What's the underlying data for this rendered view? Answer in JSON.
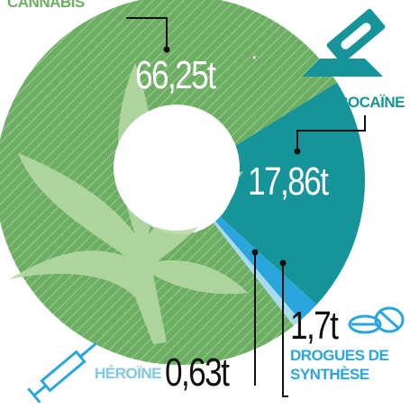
{
  "chart_data": {
    "type": "pie",
    "categories": [
      "COCAÏNE",
      "DROGUES DE SYNTHÈSE",
      "HÉROÏNE",
      "CANNABIS"
    ],
    "values": [
      17.86,
      1.7,
      0.63,
      66.25
    ],
    "value_labels": [
      "17,86t",
      "1,7t",
      "0,63t",
      "66,25t"
    ],
    "colors": [
      "#17949a",
      "#2ba6dd",
      "#a9dbee",
      "#6cae62"
    ],
    "footnote_marker": "*"
  }
}
